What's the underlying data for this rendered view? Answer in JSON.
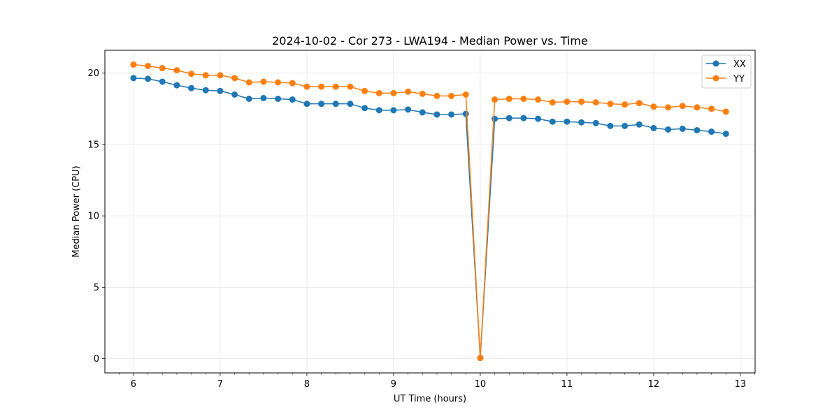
{
  "chart_data": {
    "type": "line",
    "title": "2024-10-02 - Cor 273 - LWA194 - Median Power vs. Time",
    "xlabel": "UT Time (hours)",
    "ylabel": "Median Power (CPU)",
    "xlim": [
      5.67,
      13.17
    ],
    "ylim": [
      -1.0,
      21.6
    ],
    "xticks": [
      6,
      7,
      8,
      9,
      10,
      11,
      12,
      13
    ],
    "yticks": [
      0,
      5,
      10,
      15,
      20
    ],
    "grid": true,
    "legend_position": "top-right",
    "x": [
      6.0,
      6.1667,
      6.3333,
      6.5,
      6.6667,
      6.8333,
      7.0,
      7.1667,
      7.3333,
      7.5,
      7.6667,
      7.8333,
      8.0,
      8.1667,
      8.3333,
      8.5,
      8.6667,
      8.8333,
      9.0,
      9.1667,
      9.3333,
      9.5,
      9.6667,
      9.8333,
      10.0,
      10.1667,
      10.3333,
      10.5,
      10.6667,
      10.8333,
      11.0,
      11.1667,
      11.3333,
      11.5,
      11.6667,
      11.8333,
      12.0,
      12.1667,
      12.3333,
      12.5,
      12.6667,
      12.8333
    ],
    "series": [
      {
        "name": "XX",
        "color": "#1f77b4",
        "values": [
          19.65,
          19.6,
          19.4,
          19.15,
          18.95,
          18.8,
          18.75,
          18.5,
          18.2,
          18.25,
          18.2,
          18.15,
          17.85,
          17.85,
          17.85,
          17.85,
          17.55,
          17.4,
          17.4,
          17.45,
          17.25,
          17.1,
          17.1,
          17.15,
          0.05,
          16.8,
          16.85,
          16.85,
          16.8,
          16.6,
          16.6,
          16.55,
          16.5,
          16.3,
          16.3,
          16.4,
          16.15,
          16.05,
          16.1,
          16.0,
          15.9,
          15.75
        ]
      },
      {
        "name": "YY",
        "color": "#ff7f0e",
        "values": [
          20.6,
          20.5,
          20.35,
          20.2,
          19.95,
          19.85,
          19.85,
          19.65,
          19.35,
          19.4,
          19.35,
          19.3,
          19.05,
          19.05,
          19.05,
          19.05,
          18.75,
          18.6,
          18.6,
          18.7,
          18.55,
          18.4,
          18.4,
          18.5,
          0.05,
          18.15,
          18.2,
          18.2,
          18.15,
          17.95,
          18.0,
          18.0,
          17.95,
          17.85,
          17.8,
          17.9,
          17.65,
          17.6,
          17.7,
          17.6,
          17.5,
          17.3
        ]
      }
    ]
  }
}
